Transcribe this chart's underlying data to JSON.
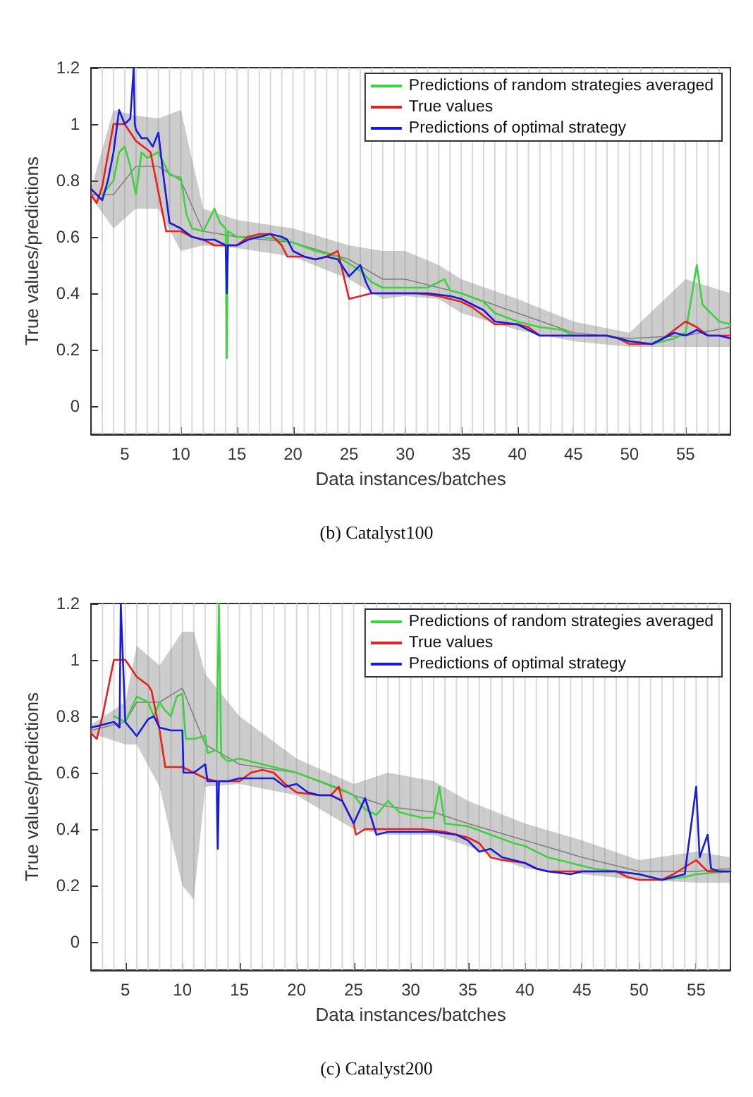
{
  "chart_data": [
    {
      "type": "line",
      "xlabel": "Data instances/batches",
      "ylabel": "True values/predictions",
      "xlim": [
        2,
        59
      ],
      "xticks": [
        5,
        10,
        15,
        20,
        25,
        30,
        35,
        40,
        45,
        50,
        55
      ],
      "ylim": [
        -0.1,
        1.2
      ],
      "yticks": [
        0,
        0.2,
        0.4,
        0.6,
        0.8,
        1,
        1.2
      ],
      "grid": false,
      "legend": "top right",
      "marker": "none",
      "annotations": [
        "(b) Catalyst100"
      ],
      "series": [
        {
          "color": "#808080",
          "x": [
            2,
            4,
            6,
            8,
            10,
            12,
            15,
            20,
            25,
            28,
            30,
            33,
            35,
            40,
            45,
            50,
            55,
            59
          ],
          "values": [
            0.75,
            0.75,
            0.85,
            0.85,
            0.8,
            0.62,
            0.6,
            0.58,
            0.52,
            0.45,
            0.45,
            0.42,
            0.4,
            0.33,
            0.26,
            0.24,
            0.25,
            0.28
          ],
          "lower": [
            0.74,
            0.63,
            0.7,
            0.7,
            0.55,
            0.57,
            0.56,
            0.53,
            0.45,
            0.38,
            0.39,
            0.38,
            0.33,
            0.27,
            0.23,
            0.21,
            0.21,
            0.21
          ],
          "upper": [
            0.77,
            1.05,
            1.03,
            1.02,
            1.05,
            0.7,
            0.66,
            0.63,
            0.57,
            0.55,
            0.55,
            0.5,
            0.45,
            0.38,
            0.3,
            0.26,
            0.45,
            0.4
          ]
        },
        {
          "name": "Predictions of random strategies averaged",
          "color": "#3fd23f",
          "x": [
            3,
            4,
            4.5,
            5,
            5.5,
            6,
            6.5,
            7,
            8,
            9,
            10,
            10.5,
            11,
            12,
            13,
            13.5,
            14,
            14.1,
            14.2,
            15,
            17,
            19,
            20,
            22,
            24,
            26,
            27,
            28,
            30,
            32,
            33.5,
            34,
            35,
            37,
            38,
            40,
            42,
            44,
            45,
            48,
            50,
            52,
            54,
            55,
            56,
            56.5,
            57,
            58,
            59
          ],
          "values": [
            0.75,
            0.8,
            0.9,
            0.92,
            0.85,
            0.75,
            0.9,
            0.88,
            0.9,
            0.82,
            0.81,
            0.68,
            0.63,
            0.62,
            0.7,
            0.65,
            0.63,
            0.17,
            0.62,
            0.6,
            0.6,
            0.59,
            0.58,
            0.55,
            0.53,
            0.48,
            0.44,
            0.42,
            0.42,
            0.42,
            0.45,
            0.41,
            0.4,
            0.37,
            0.33,
            0.3,
            0.28,
            0.27,
            0.25,
            0.25,
            0.23,
            0.22,
            0.24,
            0.26,
            0.5,
            0.36,
            0.34,
            0.3,
            0.29
          ]
        },
        {
          "name": "True values",
          "color": "#e8201f",
          "x": [
            2,
            2.5,
            3,
            4,
            5,
            6,
            7,
            7.3,
            8.7,
            10,
            11,
            12,
            13,
            15,
            16,
            17,
            18,
            19,
            19.5,
            21,
            22,
            23,
            24,
            25,
            26,
            27,
            30,
            31,
            33,
            35,
            36,
            37,
            38,
            40,
            41,
            42,
            45,
            48,
            49,
            50,
            52,
            53,
            55,
            56,
            57,
            59
          ],
          "values": [
            0.75,
            0.72,
            0.78,
            1,
            1,
            0.94,
            0.91,
            0.9,
            0.62,
            0.62,
            0.6,
            0.59,
            0.57,
            0.57,
            0.6,
            0.61,
            0.61,
            0.57,
            0.53,
            0.53,
            0.52,
            0.53,
            0.55,
            0.38,
            0.39,
            0.4,
            0.4,
            0.4,
            0.39,
            0.37,
            0.35,
            0.32,
            0.29,
            0.29,
            0.28,
            0.25,
            0.25,
            0.25,
            0.24,
            0.22,
            0.22,
            0.24,
            0.3,
            0.28,
            0.25,
            0.25
          ]
        },
        {
          "name": "Predictions of optimal strategy",
          "color": "#1a1adb",
          "x": [
            2,
            3,
            3.5,
            4,
            4.5,
            5,
            5.5,
            5.8,
            5.9,
            6,
            6.5,
            7,
            7.5,
            8,
            8.5,
            9,
            10,
            11,
            12,
            13,
            14,
            14.1,
            14.2,
            15,
            16,
            17,
            18,
            19,
            19.5,
            20,
            21,
            22,
            23,
            24,
            25,
            26,
            26.5,
            27,
            28,
            30,
            32,
            34,
            35,
            37,
            38,
            40,
            41,
            42,
            45,
            48,
            49,
            50,
            52,
            53,
            54,
            55,
            56,
            57,
            58,
            59
          ],
          "values": [
            0.77,
            0.73,
            0.8,
            0.9,
            1.05,
            1,
            1.02,
            1.2,
            1,
            0.98,
            0.95,
            0.95,
            0.92,
            0.97,
            0.8,
            0.65,
            0.63,
            0.6,
            0.59,
            0.59,
            0.57,
            0.4,
            0.57,
            0.57,
            0.59,
            0.6,
            0.61,
            0.6,
            0.59,
            0.55,
            0.53,
            0.52,
            0.53,
            0.52,
            0.46,
            0.5,
            0.44,
            0.4,
            0.4,
            0.4,
            0.4,
            0.39,
            0.38,
            0.34,
            0.3,
            0.29,
            0.27,
            0.25,
            0.25,
            0.25,
            0.24,
            0.23,
            0.22,
            0.24,
            0.26,
            0.25,
            0.27,
            0.25,
            0.25,
            0.24
          ]
        }
      ],
      "ref_lines": [
        {
          "axis": "x",
          "value": 3,
          "color": "#d9d9d9"
        },
        {
          "axis": "x",
          "value": 4,
          "color": "#d9d9d9"
        },
        {
          "axis": "x",
          "value": 5,
          "color": "#d9d9d9"
        },
        {
          "axis": "x",
          "value": 6,
          "color": "#d9d9d9"
        },
        {
          "axis": "x",
          "value": 7,
          "color": "#d9d9d9"
        },
        {
          "axis": "x",
          "value": 8,
          "color": "#d9d9d9"
        },
        {
          "axis": "x",
          "value": 9,
          "color": "#d9d9d9"
        },
        {
          "axis": "x",
          "value": 10,
          "color": "#d9d9d9"
        },
        {
          "axis": "x",
          "value": 11,
          "color": "#d9d9d9"
        },
        {
          "axis": "x",
          "value": 12,
          "color": "#d9d9d9"
        },
        {
          "axis": "x",
          "value": 13,
          "color": "#d9d9d9"
        },
        {
          "axis": "x",
          "value": 14,
          "color": "#d9d9d9"
        },
        {
          "axis": "x",
          "value": 15,
          "color": "#d9d9d9"
        },
        {
          "axis": "x",
          "value": 16,
          "color": "#d9d9d9"
        },
        {
          "axis": "x",
          "value": 17,
          "color": "#d9d9d9"
        },
        {
          "axis": "x",
          "value": 18,
          "color": "#d9d9d9"
        },
        {
          "axis": "x",
          "value": 19,
          "color": "#d9d9d9"
        },
        {
          "axis": "x",
          "value": 20,
          "color": "#d9d9d9"
        },
        {
          "axis": "x",
          "value": 21,
          "color": "#d9d9d9"
        },
        {
          "axis": "x",
          "value": 22,
          "color": "#d9d9d9"
        },
        {
          "axis": "x",
          "value": 23,
          "color": "#d9d9d9"
        },
        {
          "axis": "x",
          "value": 24,
          "color": "#d9d9d9"
        },
        {
          "axis": "x",
          "value": 25,
          "color": "#d9d9d9"
        },
        {
          "axis": "x",
          "value": 26,
          "color": "#d9d9d9"
        },
        {
          "axis": "x",
          "value": 27,
          "color": "#d9d9d9"
        },
        {
          "axis": "x",
          "value": 28,
          "color": "#d9d9d9"
        },
        {
          "axis": "x",
          "value": 29,
          "color": "#d9d9d9"
        },
        {
          "axis": "x",
          "value": 30,
          "color": "#d9d9d9"
        },
        {
          "axis": "x",
          "value": 31,
          "color": "#d9d9d9"
        },
        {
          "axis": "x",
          "value": 32,
          "color": "#d9d9d9"
        },
        {
          "axis": "x",
          "value": 33,
          "color": "#d9d9d9"
        },
        {
          "axis": "x",
          "value": 34,
          "color": "#d9d9d9"
        },
        {
          "axis": "x",
          "value": 35,
          "color": "#d9d9d9"
        },
        {
          "axis": "x",
          "value": 36,
          "color": "#d9d9d9"
        },
        {
          "axis": "x",
          "value": 37,
          "color": "#d9d9d9"
        },
        {
          "axis": "x",
          "value": 38,
          "color": "#d9d9d9"
        },
        {
          "axis": "x",
          "value": 39,
          "color": "#d9d9d9"
        },
        {
          "axis": "x",
          "value": 40,
          "color": "#d9d9d9"
        },
        {
          "axis": "x",
          "value": 41,
          "color": "#d9d9d9"
        },
        {
          "axis": "x",
          "value": 42,
          "color": "#d9d9d9"
        },
        {
          "axis": "x",
          "value": 43,
          "color": "#d9d9d9"
        },
        {
          "axis": "x",
          "value": 44,
          "color": "#d9d9d9"
        },
        {
          "axis": "x",
          "value": 45,
          "color": "#d9d9d9"
        },
        {
          "axis": "x",
          "value": 46,
          "color": "#d9d9d9"
        },
        {
          "axis": "x",
          "value": 47,
          "color": "#d9d9d9"
        },
        {
          "axis": "x",
          "value": 48,
          "color": "#d9d9d9"
        },
        {
          "axis": "x",
          "value": 49,
          "color": "#d9d9d9"
        },
        {
          "axis": "x",
          "value": 50,
          "color": "#d9d9d9"
        },
        {
          "axis": "x",
          "value": 51,
          "color": "#d9d9d9"
        },
        {
          "axis": "x",
          "value": 52,
          "color": "#d9d9d9"
        },
        {
          "axis": "x",
          "value": 53,
          "color": "#d9d9d9"
        },
        {
          "axis": "x",
          "value": 54,
          "color": "#d9d9d9"
        },
        {
          "axis": "x",
          "value": 55,
          "color": "#d9d9d9"
        },
        {
          "axis": "x",
          "value": 56,
          "color": "#d9d9d9"
        },
        {
          "axis": "x",
          "value": 57,
          "color": "#d9d9d9"
        },
        {
          "axis": "x",
          "value": 58,
          "color": "#d9d9d9"
        }
      ]
    },
    {
      "type": "line",
      "xlabel": "Data instances/batches",
      "ylabel": "True values/predictions",
      "xlim": [
        2,
        58
      ],
      "xticks": [
        5,
        10,
        15,
        20,
        25,
        30,
        35,
        40,
        45,
        50,
        55
      ],
      "ylim": [
        -0.1,
        1.2
      ],
      "yticks": [
        0,
        0.2,
        0.4,
        0.6,
        0.8,
        1,
        1.2
      ],
      "grid": false,
      "legend": "top right",
      "marker": "none",
      "annotations": [
        "(c) Catalyst200"
      ],
      "series": [
        {
          "color": "#808080",
          "x": [
            2,
            5,
            6,
            8,
            10,
            11,
            12,
            15,
            20,
            25,
            28,
            32,
            35,
            40,
            45,
            50,
            55,
            58
          ],
          "values": [
            0.75,
            0.78,
            0.85,
            0.85,
            0.9,
            0.8,
            0.7,
            0.63,
            0.6,
            0.52,
            0.48,
            0.46,
            0.42,
            0.36,
            0.3,
            0.25,
            0.25,
            0.26
          ],
          "lower": [
            0.74,
            0.7,
            0.7,
            0.55,
            0.2,
            0.15,
            0.55,
            0.56,
            0.52,
            0.4,
            0.38,
            0.38,
            0.34,
            0.26,
            0.24,
            0.22,
            0.21,
            0.21
          ],
          "upper": [
            0.77,
            0.85,
            1.05,
            0.98,
            1.1,
            1.1,
            0.95,
            0.8,
            0.65,
            0.56,
            0.6,
            0.57,
            0.5,
            0.42,
            0.36,
            0.29,
            0.32,
            0.3
          ]
        },
        {
          "name": "Predictions of random strategies averaged",
          "color": "#3fd23f",
          "x": [
            4,
            5,
            6,
            7,
            7.5,
            8,
            8.5,
            9,
            9.5,
            10,
            10.3,
            11,
            12,
            12.2,
            13,
            13.2,
            13.4,
            14,
            15,
            17,
            20,
            22,
            24,
            25,
            26,
            27,
            28,
            29,
            31,
            32,
            32.5,
            33,
            35,
            37,
            39,
            40,
            42,
            44,
            46,
            48,
            50,
            52,
            54,
            55,
            58
          ],
          "values": [
            0.8,
            0.78,
            0.87,
            0.85,
            0.8,
            0.85,
            0.82,
            0.8,
            0.87,
            0.88,
            0.72,
            0.72,
            0.73,
            0.67,
            0.68,
            1.2,
            0.66,
            0.64,
            0.65,
            0.63,
            0.6,
            0.57,
            0.54,
            0.52,
            0.47,
            0.45,
            0.5,
            0.46,
            0.44,
            0.44,
            0.55,
            0.42,
            0.41,
            0.38,
            0.35,
            0.34,
            0.3,
            0.28,
            0.26,
            0.25,
            0.24,
            0.22,
            0.23,
            0.24,
            0.25
          ]
        },
        {
          "name": "True values",
          "color": "#e8201f",
          "x": [
            2,
            2.5,
            3,
            4,
            5,
            5.5,
            6,
            7,
            7.3,
            8,
            8.5,
            10,
            11,
            12,
            13,
            15,
            16,
            17,
            18,
            19,
            20,
            22,
            23,
            23.7,
            24,
            25,
            25.2,
            26,
            27,
            30,
            31,
            33,
            35,
            36,
            37,
            38,
            40,
            41,
            42,
            45,
            48,
            49,
            50,
            52,
            53,
            55,
            56,
            58
          ],
          "values": [
            0.74,
            0.72,
            0.8,
            1,
            1,
            0.97,
            0.94,
            0.91,
            0.89,
            0.75,
            0.62,
            0.62,
            0.6,
            0.58,
            0.57,
            0.57,
            0.6,
            0.61,
            0.6,
            0.56,
            0.53,
            0.52,
            0.52,
            0.55,
            0.5,
            0.42,
            0.38,
            0.4,
            0.4,
            0.4,
            0.4,
            0.39,
            0.37,
            0.35,
            0.3,
            0.29,
            0.28,
            0.26,
            0.25,
            0.25,
            0.25,
            0.23,
            0.22,
            0.22,
            0.24,
            0.29,
            0.25,
            0.25
          ]
        },
        {
          "name": "Predictions of optimal strategy",
          "color": "#1a1adb",
          "x": [
            2,
            3,
            4,
            4.5,
            4.6,
            5,
            6,
            7,
            7.5,
            8,
            9,
            10,
            10.1,
            11,
            12,
            12.2,
            13,
            13.1,
            13.2,
            14,
            15,
            17,
            18,
            19,
            20,
            21,
            22,
            23,
            24,
            25,
            26,
            27,
            28,
            30,
            32,
            34,
            35,
            36,
            37,
            38,
            40,
            41,
            42,
            44,
            45,
            48,
            50,
            52,
            53,
            54,
            55,
            55.3,
            56,
            56.3,
            57,
            58
          ],
          "values": [
            0.76,
            0.77,
            0.78,
            0.76,
            1.2,
            0.78,
            0.73,
            0.79,
            0.8,
            0.76,
            0.75,
            0.75,
            0.6,
            0.6,
            0.63,
            0.57,
            0.57,
            0.33,
            0.57,
            0.57,
            0.58,
            0.58,
            0.58,
            0.55,
            0.56,
            0.53,
            0.52,
            0.52,
            0.5,
            0.42,
            0.51,
            0.38,
            0.39,
            0.39,
            0.39,
            0.38,
            0.36,
            0.32,
            0.33,
            0.3,
            0.28,
            0.26,
            0.25,
            0.24,
            0.25,
            0.25,
            0.24,
            0.22,
            0.23,
            0.24,
            0.55,
            0.3,
            0.38,
            0.26,
            0.25,
            0.25
          ]
        }
      ],
      "ref_lines": [
        {
          "axis": "x",
          "value": 3,
          "color": "#d9d9d9"
        },
        {
          "axis": "x",
          "value": 4,
          "color": "#d9d9d9"
        },
        {
          "axis": "x",
          "value": 5,
          "color": "#d9d9d9"
        },
        {
          "axis": "x",
          "value": 6,
          "color": "#d9d9d9"
        },
        {
          "axis": "x",
          "value": 7,
          "color": "#d9d9d9"
        },
        {
          "axis": "x",
          "value": 8,
          "color": "#d9d9d9"
        },
        {
          "axis": "x",
          "value": 9,
          "color": "#d9d9d9"
        },
        {
          "axis": "x",
          "value": 10,
          "color": "#d9d9d9"
        },
        {
          "axis": "x",
          "value": 11,
          "color": "#d9d9d9"
        },
        {
          "axis": "x",
          "value": 12,
          "color": "#d9d9d9"
        },
        {
          "axis": "x",
          "value": 13,
          "color": "#d9d9d9"
        },
        {
          "axis": "x",
          "value": 14,
          "color": "#d9d9d9"
        },
        {
          "axis": "x",
          "value": 15,
          "color": "#d9d9d9"
        },
        {
          "axis": "x",
          "value": 16,
          "color": "#d9d9d9"
        },
        {
          "axis": "x",
          "value": 17,
          "color": "#d9d9d9"
        },
        {
          "axis": "x",
          "value": 18,
          "color": "#d9d9d9"
        },
        {
          "axis": "x",
          "value": 19,
          "color": "#d9d9d9"
        },
        {
          "axis": "x",
          "value": 20,
          "color": "#d9d9d9"
        },
        {
          "axis": "x",
          "value": 21,
          "color": "#d9d9d9"
        },
        {
          "axis": "x",
          "value": 22,
          "color": "#d9d9d9"
        },
        {
          "axis": "x",
          "value": 23,
          "color": "#d9d9d9"
        },
        {
          "axis": "x",
          "value": 24,
          "color": "#d9d9d9"
        },
        {
          "axis": "x",
          "value": 25,
          "color": "#d9d9d9"
        },
        {
          "axis": "x",
          "value": 26,
          "color": "#d9d9d9"
        },
        {
          "axis": "x",
          "value": 27,
          "color": "#d9d9d9"
        },
        {
          "axis": "x",
          "value": 28,
          "color": "#d9d9d9"
        },
        {
          "axis": "x",
          "value": 29,
          "color": "#d9d9d9"
        },
        {
          "axis": "x",
          "value": 30,
          "color": "#d9d9d9"
        },
        {
          "axis": "x",
          "value": 31,
          "color": "#d9d9d9"
        },
        {
          "axis": "x",
          "value": 32,
          "color": "#d9d9d9"
        },
        {
          "axis": "x",
          "value": 33,
          "color": "#d9d9d9"
        },
        {
          "axis": "x",
          "value": 34,
          "color": "#d9d9d9"
        },
        {
          "axis": "x",
          "value": 35,
          "color": "#d9d9d9"
        },
        {
          "axis": "x",
          "value": 36,
          "color": "#d9d9d9"
        },
        {
          "axis": "x",
          "value": 37,
          "color": "#d9d9d9"
        },
        {
          "axis": "x",
          "value": 38,
          "color": "#d9d9d9"
        },
        {
          "axis": "x",
          "value": 39,
          "color": "#d9d9d9"
        },
        {
          "axis": "x",
          "value": 40,
          "color": "#d9d9d9"
        },
        {
          "axis": "x",
          "value": 41,
          "color": "#d9d9d9"
        },
        {
          "axis": "x",
          "value": 42,
          "color": "#d9d9d9"
        },
        {
          "axis": "x",
          "value": 43,
          "color": "#d9d9d9"
        },
        {
          "axis": "x",
          "value": 44,
          "color": "#d9d9d9"
        },
        {
          "axis": "x",
          "value": 45,
          "color": "#d9d9d9"
        },
        {
          "axis": "x",
          "value": 46,
          "color": "#d9d9d9"
        },
        {
          "axis": "x",
          "value": 47,
          "color": "#d9d9d9"
        },
        {
          "axis": "x",
          "value": 48,
          "color": "#d9d9d9"
        },
        {
          "axis": "x",
          "value": 49,
          "color": "#d9d9d9"
        },
        {
          "axis": "x",
          "value": 50,
          "color": "#d9d9d9"
        },
        {
          "axis": "x",
          "value": 51,
          "color": "#d9d9d9"
        },
        {
          "axis": "x",
          "value": 52,
          "color": "#d9d9d9"
        },
        {
          "axis": "x",
          "value": 53,
          "color": "#d9d9d9"
        },
        {
          "axis": "x",
          "value": 54,
          "color": "#d9d9d9"
        },
        {
          "axis": "x",
          "value": 55,
          "color": "#d9d9d9"
        },
        {
          "axis": "x",
          "value": 56,
          "color": "#d9d9d9"
        },
        {
          "axis": "x",
          "value": 57,
          "color": "#d9d9d9"
        }
      ]
    }
  ]
}
